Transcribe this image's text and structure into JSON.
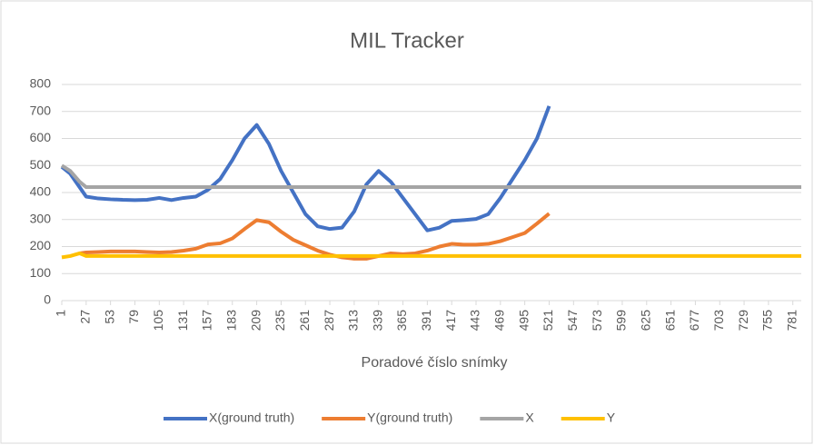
{
  "chart_data": {
    "type": "line",
    "title": "MIL Tracker",
    "x_label": "Poradové číslo snímky",
    "x": [
      1,
      10,
      20,
      27,
      40,
      53,
      66,
      79,
      92,
      105,
      118,
      131,
      144,
      157,
      170,
      183,
      196,
      209,
      222,
      235,
      248,
      261,
      274,
      287,
      300,
      313,
      326,
      339,
      352,
      365,
      378,
      391,
      404,
      417,
      430,
      443,
      456,
      469,
      482,
      495,
      508,
      521,
      550,
      600,
      650,
      700,
      750,
      790
    ],
    "series": [
      {
        "name": "X(ground truth)",
        "color": "#4472c4",
        "values": [
          495,
          470,
          420,
          385,
          378,
          375,
          373,
          372,
          373,
          380,
          372,
          380,
          385,
          410,
          450,
          520,
          600,
          650,
          580,
          480,
          400,
          320,
          275,
          265,
          270,
          330,
          430,
          480,
          440,
          380,
          320,
          260,
          270,
          295,
          298,
          302,
          320,
          380,
          450,
          520,
          600,
          720,
          null,
          null,
          null,
          null,
          null,
          null
        ]
      },
      {
        "name": "Y(ground truth)",
        "color": "#ed7d31",
        "values": [
          null,
          null,
          175,
          178,
          180,
          182,
          182,
          182,
          180,
          178,
          180,
          185,
          192,
          208,
          212,
          230,
          265,
          298,
          290,
          255,
          225,
          205,
          185,
          170,
          160,
          155,
          155,
          165,
          175,
          172,
          175,
          185,
          200,
          210,
          207,
          207,
          210,
          220,
          235,
          250,
          285,
          322,
          null,
          null,
          null,
          null,
          null,
          null
        ]
      },
      {
        "name": "X",
        "color": "#a5a5a5",
        "values": [
          500,
          480,
          440,
          420,
          420,
          420,
          420,
          420,
          420,
          420,
          420,
          420,
          420,
          420,
          420,
          420,
          420,
          420,
          420,
          420,
          420,
          420,
          420,
          420,
          420,
          420,
          420,
          420,
          420,
          420,
          420,
          420,
          420,
          420,
          420,
          420,
          420,
          420,
          420,
          420,
          420,
          420,
          420,
          420,
          420,
          420,
          420,
          420
        ]
      },
      {
        "name": "Y",
        "color": "#ffc000",
        "values": [
          160,
          165,
          175,
          165,
          165,
          165,
          165,
          165,
          165,
          165,
          165,
          165,
          165,
          165,
          165,
          165,
          165,
          165,
          165,
          165,
          165,
          165,
          165,
          165,
          165,
          165,
          165,
          165,
          165,
          165,
          165,
          165,
          165,
          165,
          165,
          165,
          165,
          165,
          165,
          165,
          165,
          165,
          165,
          165,
          165,
          165,
          165,
          165
        ]
      }
    ],
    "xlim": [
      1,
      790
    ],
    "xticks": [
      1,
      27,
      53,
      79,
      105,
      131,
      157,
      183,
      209,
      235,
      261,
      287,
      313,
      339,
      365,
      391,
      417,
      443,
      469,
      495,
      521,
      547,
      573,
      599,
      625,
      651,
      677,
      703,
      729,
      755,
      781
    ],
    "ylim": [
      0,
      800
    ],
    "yticks": [
      0,
      100,
      200,
      300,
      400,
      500,
      600,
      700,
      800
    ],
    "grid": true,
    "legend": "bottom"
  }
}
